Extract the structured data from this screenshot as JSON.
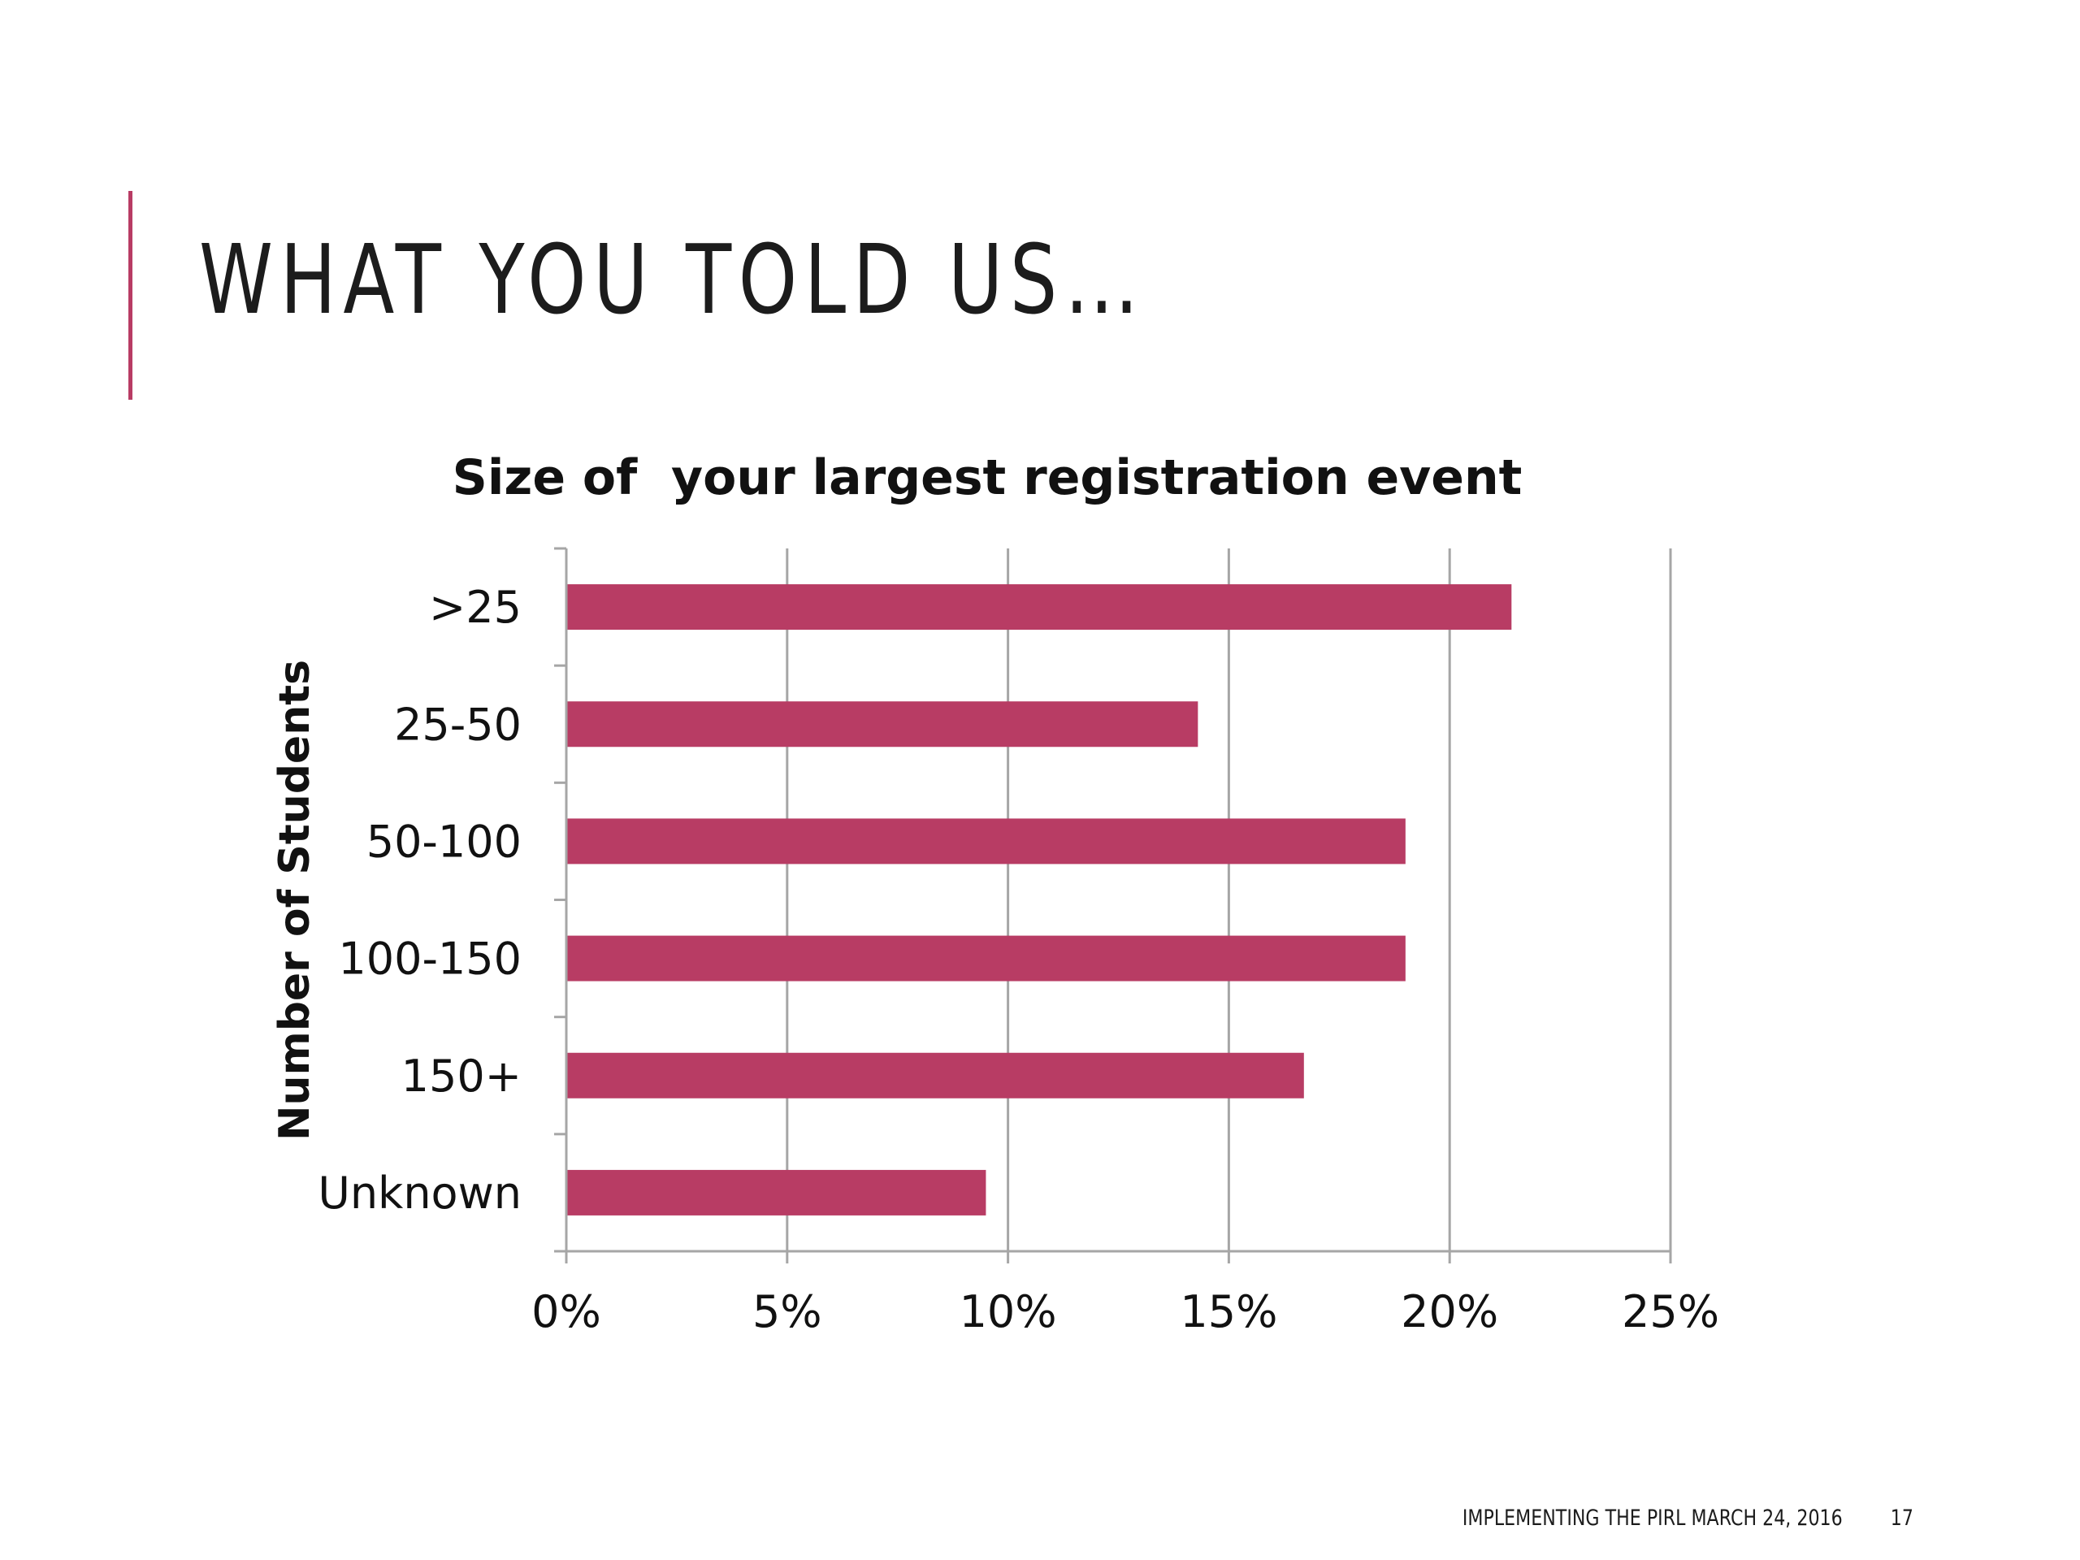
{
  "slide": {
    "title": "WHAT YOU TOLD US…",
    "accent_color": "#b83c64",
    "footer": {
      "text": "IMPLEMENTING THE PIRL MARCH 24, 2016",
      "page": "17"
    }
  },
  "chart_data": {
    "type": "bar",
    "orientation": "horizontal",
    "title": "Size of  your largest registration event",
    "ylabel": "Number of Students",
    "xlabel": "",
    "categories": [
      ">25",
      "25-50",
      "50-100",
      "100-150",
      "150+",
      "Unknown"
    ],
    "values": [
      21.4,
      14.3,
      19.0,
      19.0,
      16.7,
      9.5
    ],
    "xlim": [
      0,
      25
    ],
    "xticks": [
      0,
      5,
      10,
      15,
      20,
      25
    ],
    "xtick_labels": [
      "0%",
      "5%",
      "10%",
      "15%",
      "20%",
      "25%"
    ],
    "grid": "vertical",
    "bar_color": "#b83c64",
    "legend": "none"
  }
}
